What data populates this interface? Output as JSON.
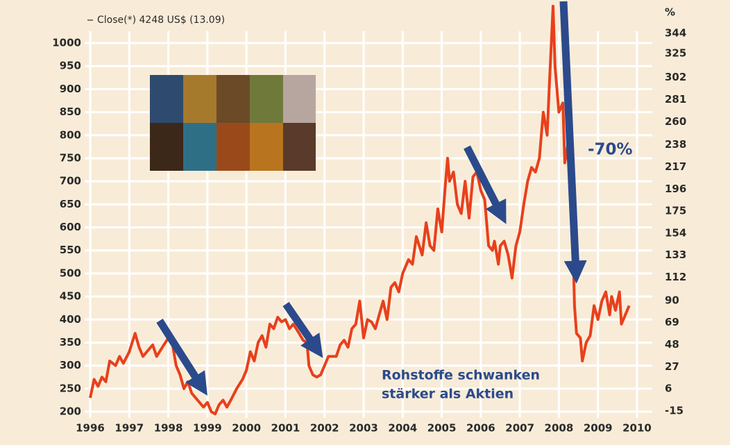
{
  "chart_data": {
    "type": "line",
    "series": [
      {
        "name": "Close(*) 4248 US$ (13.09)",
        "color": "#e8401c",
        "x": [
          1996.0,
          1996.1,
          1996.2,
          1996.3,
          1996.4,
          1996.5,
          1996.65,
          1996.75,
          1996.85,
          1997.0,
          1997.15,
          1997.25,
          1997.35,
          1997.5,
          1997.6,
          1997.7,
          1997.85,
          1998.0,
          1998.1,
          1998.2,
          1998.3,
          1998.4,
          1998.5,
          1998.6,
          1998.75,
          1998.9,
          1999.0,
          1999.1,
          1999.2,
          1999.3,
          1999.4,
          1999.5,
          1999.6,
          1999.75,
          1999.9,
          2000.0,
          2000.1,
          2000.2,
          2000.3,
          2000.4,
          2000.5,
          2000.6,
          2000.7,
          2000.8,
          2000.9,
          2001.0,
          2001.1,
          2001.2,
          2001.35,
          2001.45,
          2001.55,
          2001.6,
          2001.7,
          2001.8,
          2001.9,
          2002.0,
          2002.1,
          2002.3,
          2002.4,
          2002.5,
          2002.6,
          2002.7,
          2002.8,
          2002.9,
          2003.0,
          2003.1,
          2003.2,
          2003.3,
          2003.4,
          2003.5,
          2003.6,
          2003.7,
          2003.8,
          2003.9,
          2004.0,
          2004.15,
          2004.25,
          2004.35,
          2004.5,
          2004.6,
          2004.7,
          2004.8,
          2004.9,
          2005.0,
          2005.1,
          2005.15,
          2005.2,
          2005.3,
          2005.4,
          2005.5,
          2005.6,
          2005.7,
          2005.8,
          2005.9,
          2006.0,
          2006.1,
          2006.2,
          2006.3,
          2006.35,
          2006.45,
          2006.5,
          2006.6,
          2006.7,
          2006.8,
          2006.9,
          2007.0,
          2007.1,
          2007.2,
          2007.3,
          2007.4,
          2007.5,
          2007.6,
          2007.7,
          2007.75,
          2007.85,
          2007.9,
          2008.0,
          2008.1,
          2008.15,
          2008.25,
          2008.35,
          2008.4,
          2008.45,
          2008.55,
          2008.6,
          2008.7,
          2008.8,
          2008.9,
          2009.0,
          2009.1,
          2009.2,
          2009.3,
          2009.35,
          2009.45,
          2009.55,
          2009.6,
          2009.7,
          2009.8
        ],
        "values": [
          230,
          270,
          255,
          275,
          265,
          310,
          300,
          320,
          305,
          330,
          370,
          340,
          320,
          335,
          345,
          320,
          340,
          360,
          350,
          300,
          280,
          250,
          265,
          240,
          225,
          210,
          220,
          200,
          195,
          215,
          225,
          210,
          225,
          250,
          270,
          290,
          330,
          310,
          350,
          365,
          340,
          390,
          380,
          405,
          395,
          400,
          380,
          390,
          370,
          355,
          350,
          300,
          280,
          275,
          280,
          300,
          320,
          320,
          345,
          355,
          340,
          380,
          390,
          440,
          360,
          400,
          395,
          380,
          410,
          440,
          400,
          470,
          480,
          460,
          500,
          530,
          520,
          580,
          540,
          610,
          560,
          550,
          640,
          590,
          700,
          750,
          700,
          720,
          650,
          630,
          700,
          620,
          710,
          720,
          680,
          660,
          560,
          550,
          570,
          520,
          560,
          570,
          540,
          490,
          560,
          590,
          650,
          700,
          730,
          720,
          750,
          850,
          800,
          900,
          1080,
          950,
          850,
          870,
          740,
          790,
          600,
          430,
          370,
          360,
          310,
          350,
          365,
          430,
          400,
          440,
          460,
          410,
          450,
          420,
          460,
          390,
          410,
          430
        ]
      }
    ],
    "xlim": [
      1996,
      2010
    ],
    "xticks": [
      1996,
      1997,
      1998,
      1999,
      2000,
      2001,
      2002,
      2003,
      2004,
      2005,
      2006,
      2007,
      2008,
      2009,
      2010
    ],
    "ylim": [
      200,
      1000
    ],
    "yticks": [
      200,
      250,
      300,
      350,
      400,
      450,
      500,
      550,
      600,
      650,
      700,
      750,
      800,
      850,
      900,
      950,
      1000
    ],
    "y2label": "%",
    "y2lim": [
      -15,
      344
    ],
    "y2ticks": [
      -15,
      6,
      27,
      48,
      69,
      90,
      112,
      133,
      154,
      175,
      196,
      217,
      238,
      260,
      281,
      302,
      325,
      344
    ],
    "grid": true,
    "annotations": [
      "-70%",
      "Rohstoffe schwanken",
      "stärker als Aktien"
    ]
  }
}
